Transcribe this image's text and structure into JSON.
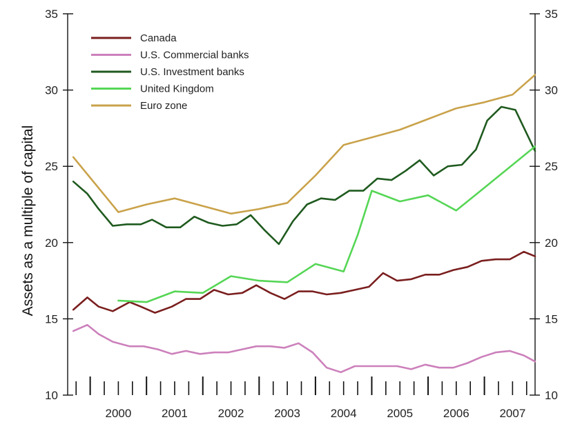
{
  "chart_data": {
    "type": "line",
    "ylabel": "Assets as a multiple of capital",
    "ylim": [
      10,
      35
    ],
    "yticks": [
      10,
      15,
      20,
      25,
      30,
      35
    ],
    "xlim": [
      1999.6,
      2007.9
    ],
    "year_labels": [
      "2000",
      "2001",
      "2002",
      "2003",
      "2004",
      "2005",
      "2006",
      "2007"
    ],
    "legend_position": "top-left",
    "grid": false,
    "series": [
      {
        "name": "Canada",
        "color": "#7a1e1e",
        "points": [
          [
            1999.7,
            15.6
          ],
          [
            1999.95,
            16.4
          ],
          [
            2000.15,
            15.8
          ],
          [
            2000.4,
            15.5
          ],
          [
            2000.7,
            16.1
          ],
          [
            2000.9,
            15.8
          ],
          [
            2001.15,
            15.4
          ],
          [
            2001.45,
            15.8
          ],
          [
            2001.7,
            16.3
          ],
          [
            2001.95,
            16.3
          ],
          [
            2002.2,
            16.9
          ],
          [
            2002.45,
            16.6
          ],
          [
            2002.7,
            16.7
          ],
          [
            2002.95,
            17.2
          ],
          [
            2003.2,
            16.7
          ],
          [
            2003.45,
            16.3
          ],
          [
            2003.7,
            16.8
          ],
          [
            2003.95,
            16.8
          ],
          [
            2004.2,
            16.6
          ],
          [
            2004.45,
            16.7
          ],
          [
            2004.7,
            16.9
          ],
          [
            2004.95,
            17.1
          ],
          [
            2005.2,
            18.0
          ],
          [
            2005.45,
            17.5
          ],
          [
            2005.7,
            17.6
          ],
          [
            2005.95,
            17.9
          ],
          [
            2006.2,
            17.9
          ],
          [
            2006.45,
            18.2
          ],
          [
            2006.7,
            18.4
          ],
          [
            2006.95,
            18.8
          ],
          [
            2007.2,
            18.9
          ],
          [
            2007.45,
            18.9
          ],
          [
            2007.7,
            19.4
          ],
          [
            2007.9,
            19.1
          ]
        ]
      },
      {
        "name": "U.S. Commercial banks",
        "color": "#cc80bb",
        "points": [
          [
            1999.7,
            14.2
          ],
          [
            1999.95,
            14.6
          ],
          [
            2000.15,
            14.0
          ],
          [
            2000.4,
            13.5
          ],
          [
            2000.7,
            13.2
          ],
          [
            2000.95,
            13.2
          ],
          [
            2001.2,
            13.0
          ],
          [
            2001.45,
            12.7
          ],
          [
            2001.7,
            12.9
          ],
          [
            2001.95,
            12.7
          ],
          [
            2002.2,
            12.8
          ],
          [
            2002.45,
            12.8
          ],
          [
            2002.7,
            13.0
          ],
          [
            2002.95,
            13.2
          ],
          [
            2003.2,
            13.2
          ],
          [
            2003.45,
            13.1
          ],
          [
            2003.7,
            13.4
          ],
          [
            2003.95,
            12.8
          ],
          [
            2004.2,
            11.8
          ],
          [
            2004.45,
            11.5
          ],
          [
            2004.7,
            11.9
          ],
          [
            2004.95,
            11.9
          ],
          [
            2005.2,
            11.9
          ],
          [
            2005.45,
            11.9
          ],
          [
            2005.7,
            11.7
          ],
          [
            2005.95,
            12.0
          ],
          [
            2006.2,
            11.8
          ],
          [
            2006.45,
            11.8
          ],
          [
            2006.7,
            12.1
          ],
          [
            2006.95,
            12.5
          ],
          [
            2007.2,
            12.8
          ],
          [
            2007.45,
            12.9
          ],
          [
            2007.7,
            12.6
          ],
          [
            2007.9,
            12.2
          ]
        ]
      },
      {
        "name": "U.S. Investment banks",
        "color": "#1f5a1f",
        "points": [
          [
            1999.7,
            24.0
          ],
          [
            1999.95,
            23.2
          ],
          [
            2000.15,
            22.2
          ],
          [
            2000.4,
            21.1
          ],
          [
            2000.65,
            21.2
          ],
          [
            2000.9,
            21.2
          ],
          [
            2001.1,
            21.5
          ],
          [
            2001.35,
            21.0
          ],
          [
            2001.6,
            21.0
          ],
          [
            2001.85,
            21.7
          ],
          [
            2002.1,
            21.3
          ],
          [
            2002.35,
            21.1
          ],
          [
            2002.6,
            21.2
          ],
          [
            2002.85,
            21.8
          ],
          [
            2003.1,
            20.8
          ],
          [
            2003.35,
            19.9
          ],
          [
            2003.6,
            21.4
          ],
          [
            2003.85,
            22.5
          ],
          [
            2004.1,
            22.9
          ],
          [
            2004.35,
            22.8
          ],
          [
            2004.6,
            23.4
          ],
          [
            2004.85,
            23.4
          ],
          [
            2005.1,
            24.2
          ],
          [
            2005.35,
            24.1
          ],
          [
            2005.6,
            24.7
          ],
          [
            2005.85,
            25.4
          ],
          [
            2006.1,
            24.4
          ],
          [
            2006.35,
            25.0
          ],
          [
            2006.6,
            25.1
          ],
          [
            2006.85,
            26.1
          ],
          [
            2007.05,
            28.0
          ],
          [
            2007.3,
            28.9
          ],
          [
            2007.55,
            28.7
          ],
          [
            2007.9,
            26.0
          ]
        ]
      },
      {
        "name": "United Kingdom",
        "color": "#55d655",
        "points": [
          [
            2000.5,
            16.2
          ],
          [
            2001.0,
            16.1
          ],
          [
            2001.5,
            16.8
          ],
          [
            2002.0,
            16.7
          ],
          [
            2002.5,
            17.8
          ],
          [
            2003.0,
            17.5
          ],
          [
            2003.5,
            17.4
          ],
          [
            2004.0,
            18.6
          ],
          [
            2004.5,
            18.1
          ],
          [
            2004.75,
            20.5
          ],
          [
            2005.0,
            23.4
          ],
          [
            2005.5,
            22.7
          ],
          [
            2006.0,
            23.1
          ],
          [
            2006.5,
            22.1
          ],
          [
            2007.0,
            23.6
          ],
          [
            2007.5,
            25.1
          ],
          [
            2007.9,
            26.3
          ]
        ]
      },
      {
        "name": "Euro zone",
        "color": "#c9a24a",
        "points": [
          [
            1999.7,
            25.6
          ],
          [
            2000.1,
            23.8
          ],
          [
            2000.5,
            22.0
          ],
          [
            2001.0,
            22.5
          ],
          [
            2001.5,
            22.9
          ],
          [
            2002.0,
            22.4
          ],
          [
            2002.5,
            21.9
          ],
          [
            2003.0,
            22.2
          ],
          [
            2003.5,
            22.6
          ],
          [
            2004.0,
            24.4
          ],
          [
            2004.5,
            26.4
          ],
          [
            2005.0,
            26.9
          ],
          [
            2005.5,
            27.4
          ],
          [
            2006.0,
            28.1
          ],
          [
            2006.5,
            28.8
          ],
          [
            2007.0,
            29.2
          ],
          [
            2007.5,
            29.7
          ],
          [
            2007.9,
            31.0
          ]
        ]
      }
    ]
  }
}
